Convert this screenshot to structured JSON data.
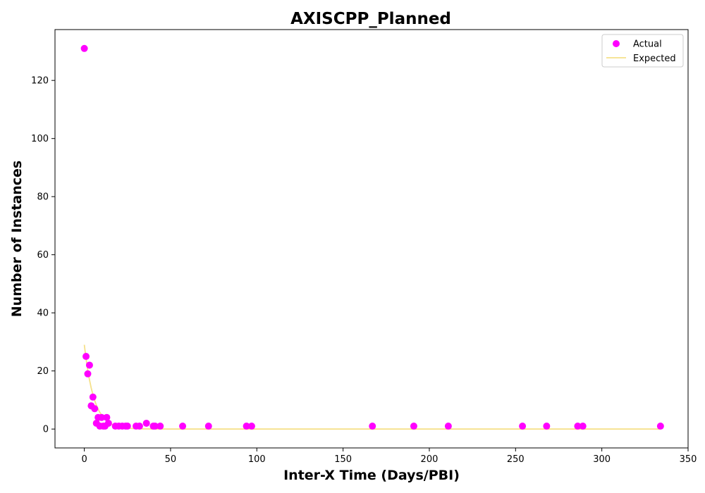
{
  "chart_data": {
    "type": "scatter",
    "title": "AXISCPP_Planned",
    "xlabel": "Inter-X Time (Days/PBI)",
    "ylabel": "Number of Instances",
    "xlim": [
      -17,
      350
    ],
    "ylim": [
      -6.5,
      137.5
    ],
    "xticks": [
      0,
      50,
      100,
      150,
      200,
      250,
      300,
      350
    ],
    "yticks": [
      0,
      20,
      40,
      60,
      80,
      100,
      120
    ],
    "grid": false,
    "legend_position": "top-right",
    "series": [
      {
        "name": "Actual",
        "kind": "scatter",
        "color": "#ff00ff",
        "points": [
          [
            0,
            131
          ],
          [
            1,
            25
          ],
          [
            2,
            19
          ],
          [
            3,
            22
          ],
          [
            4,
            8
          ],
          [
            5,
            11
          ],
          [
            6,
            7
          ],
          [
            7,
            2
          ],
          [
            8,
            4
          ],
          [
            9,
            1
          ],
          [
            10,
            4
          ],
          [
            11,
            1
          ],
          [
            12,
            1
          ],
          [
            13,
            4
          ],
          [
            14,
            2
          ],
          [
            18,
            1
          ],
          [
            20,
            1
          ],
          [
            22,
            1
          ],
          [
            24,
            1
          ],
          [
            25,
            1
          ],
          [
            30,
            1
          ],
          [
            32,
            1
          ],
          [
            36,
            2
          ],
          [
            40,
            1
          ],
          [
            41,
            1
          ],
          [
            44,
            1
          ],
          [
            57,
            1
          ],
          [
            72,
            1
          ],
          [
            94,
            1
          ],
          [
            97,
            1
          ],
          [
            167,
            1
          ],
          [
            191,
            1
          ],
          [
            211,
            1
          ],
          [
            254,
            1
          ],
          [
            268,
            1
          ],
          [
            286,
            1
          ],
          [
            289,
            1
          ],
          [
            334,
            1
          ]
        ]
      },
      {
        "name": "Expected",
        "kind": "line",
        "color": "#f5e08a",
        "model": "exponential",
        "a": 29,
        "b": 0.18,
        "x_range": [
          0,
          334
        ]
      }
    ]
  }
}
